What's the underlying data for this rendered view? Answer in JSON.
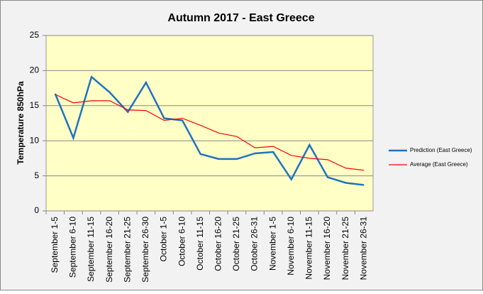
{
  "chart_data": {
    "type": "line",
    "title": "Autumn 2017 - East Greece",
    "y_label": "Temperature 850hPa",
    "categories": [
      "September 1-5",
      "September 6-10",
      "September 11-15",
      "September 16-20",
      "September 21-25",
      "September 26-30",
      "October 1-5",
      "October 6-10",
      "October 11-15",
      "October 16-20",
      "October 21-25",
      "October 26-31",
      "November 1-5",
      "November 6-10",
      "November 11-15",
      "November 16-20",
      "November 21-25",
      "November 26-31"
    ],
    "series": [
      {
        "name": "Prediction (East Greece)",
        "color": "#1f72c2",
        "values": [
          16.7,
          10.4,
          19.1,
          16.9,
          14.1,
          18.3,
          13.2,
          12.9,
          8.1,
          7.4,
          7.4,
          8.2,
          8.4,
          4.5,
          9.4,
          4.8,
          4.0,
          3.7
        ]
      },
      {
        "name": "Average (East Greece)",
        "color": "#ff0000",
        "values": [
          16.6,
          15.4,
          15.7,
          15.7,
          14.4,
          14.3,
          12.9,
          13.2,
          12.2,
          11.1,
          10.6,
          9.0,
          9.2,
          7.9,
          7.5,
          7.3,
          6.1,
          5.8
        ]
      }
    ],
    "ylim": [
      0,
      25
    ],
    "yticks": [
      0,
      5,
      10,
      15,
      20,
      25
    ],
    "grid": true,
    "legend": "right"
  }
}
